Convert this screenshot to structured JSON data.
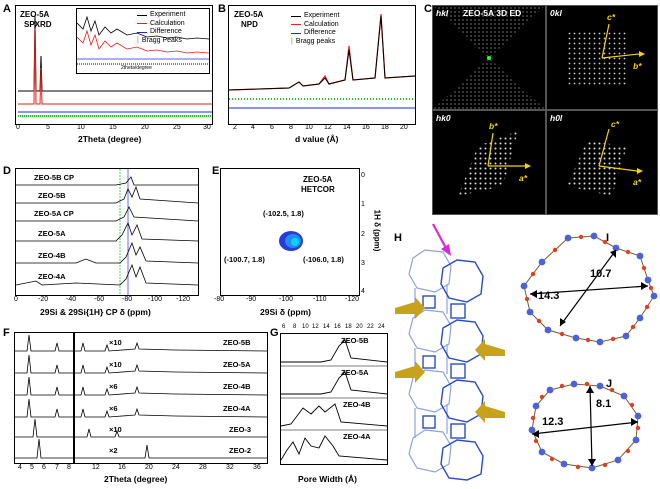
{
  "panel_labels": {
    "A": "A",
    "B": "B",
    "C": "C",
    "D": "D",
    "E": "E",
    "F": "F",
    "G": "G",
    "H": "H",
    "I": "I",
    "J": "J"
  },
  "panelA": {
    "title1": "ZEO-5A",
    "title2": "SPXRD",
    "legend": [
      "Experiment",
      "Calculation",
      "Difference",
      "Bragg Peaks"
    ],
    "legend_colors": [
      "#000000",
      "#e0201a",
      "#1a2bd6",
      "#22c32a"
    ],
    "xlabel": "2Theta (degree)",
    "xticks": [
      "0",
      "5",
      "10",
      "15",
      "20",
      "25",
      "30"
    ],
    "inset_xlabel": "2theta/degree",
    "inset_xticks": [
      "5",
      "10",
      "15",
      "20",
      "25",
      "30"
    ]
  },
  "panelB": {
    "title1": "ZEO-5A",
    "title2": "NPD",
    "legend": [
      "Experiment",
      "Calculation",
      "Difference",
      "Bragg peaks"
    ],
    "xlabel": "d value (Å)",
    "xticks": [
      "2",
      "4",
      "6",
      "8",
      "10",
      "12",
      "14",
      "16",
      "18",
      "20"
    ]
  },
  "panelC": {
    "hkl": "hkl",
    "title": "ZEO-5A 3D ED",
    "p0kl": "0kl",
    "phk0": "hk0",
    "ph0l": "h0l",
    "c_star": "c*",
    "b_star": "b*",
    "a_star": "a*"
  },
  "panelD": {
    "rows": [
      "ZEO-5B CP",
      "ZEO-5B",
      "ZEO-5A CP",
      "ZEO-5A",
      "ZEO-4B",
      "ZEO-4A"
    ],
    "xticks": [
      "0",
      "-20",
      "-40",
      "-60",
      "-80",
      "-100",
      "-120"
    ],
    "xlabel": "29Si & 29Si{1H} CP δ (ppm)"
  },
  "panelE": {
    "title1": "ZEO-5A",
    "title2": "HETCOR",
    "peak1": "(-102.5, 1.8)",
    "peak2": "(-100.7, 1.8)",
    "peak3": "(-106.0, 1.8)",
    "xticks": [
      "-80",
      "-90",
      "-100",
      "-110",
      "-120"
    ],
    "yticks": [
      "0",
      "1",
      "2",
      "3",
      "4"
    ],
    "xlabel": "29Si δ (ppm)",
    "ylabel": "1H δ (ppm)"
  },
  "panelF": {
    "rows": [
      "ZEO-5B",
      "ZEO-5A",
      "ZEO-4B",
      "ZEO-4A",
      "ZEO-3",
      "ZEO-2"
    ],
    "scales": [
      "×10",
      "×10",
      "×6",
      "×6",
      "×10",
      "×2"
    ],
    "xticks_left": [
      "4",
      "5",
      "6",
      "7",
      "8"
    ],
    "xticks_right": [
      "12",
      "16",
      "20",
      "24",
      "28",
      "32",
      "36"
    ],
    "xlabel": "2Theta (degree)"
  },
  "panelG": {
    "rows": [
      "ZEO-5B",
      "ZEO-5A",
      "ZEO-4B",
      "ZEO-4A"
    ],
    "xticks": [
      "6",
      "8",
      "10",
      "12",
      "14",
      "16",
      "18",
      "20",
      "22",
      "24"
    ],
    "xlabel": "Pore Width (Å)"
  },
  "panelI": {
    "d1": "10.7",
    "d2": "14.3"
  },
  "panelJ": {
    "d1": "8.1",
    "d2": "12.3"
  }
}
